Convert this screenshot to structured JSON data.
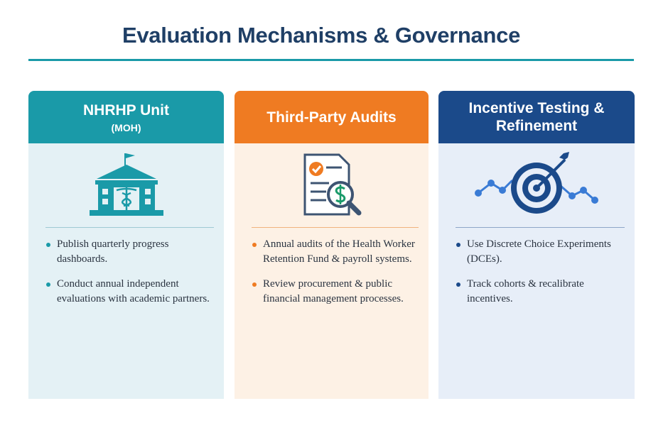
{
  "title": "Evaluation Mechanisms & Governance",
  "cards": [
    {
      "title": "NHRHP Unit",
      "subtitle": "(MOH)",
      "bullets": [
        "Publish quarterly progress dashboards.",
        "Conduct annual independent evaluations with academic partners."
      ]
    },
    {
      "title": "Third-Party Audits",
      "bullets": [
        "Annual audits of the Health Worker Retention Fund & payroll systems.",
        "Review procurement & public financial management processes."
      ]
    },
    {
      "title": "Incentive Testing & Refinement",
      "bullets": [
        "Use Discrete Choice Experiments (DCEs).",
        "Track cohorts & recalibrate incentives."
      ]
    }
  ]
}
